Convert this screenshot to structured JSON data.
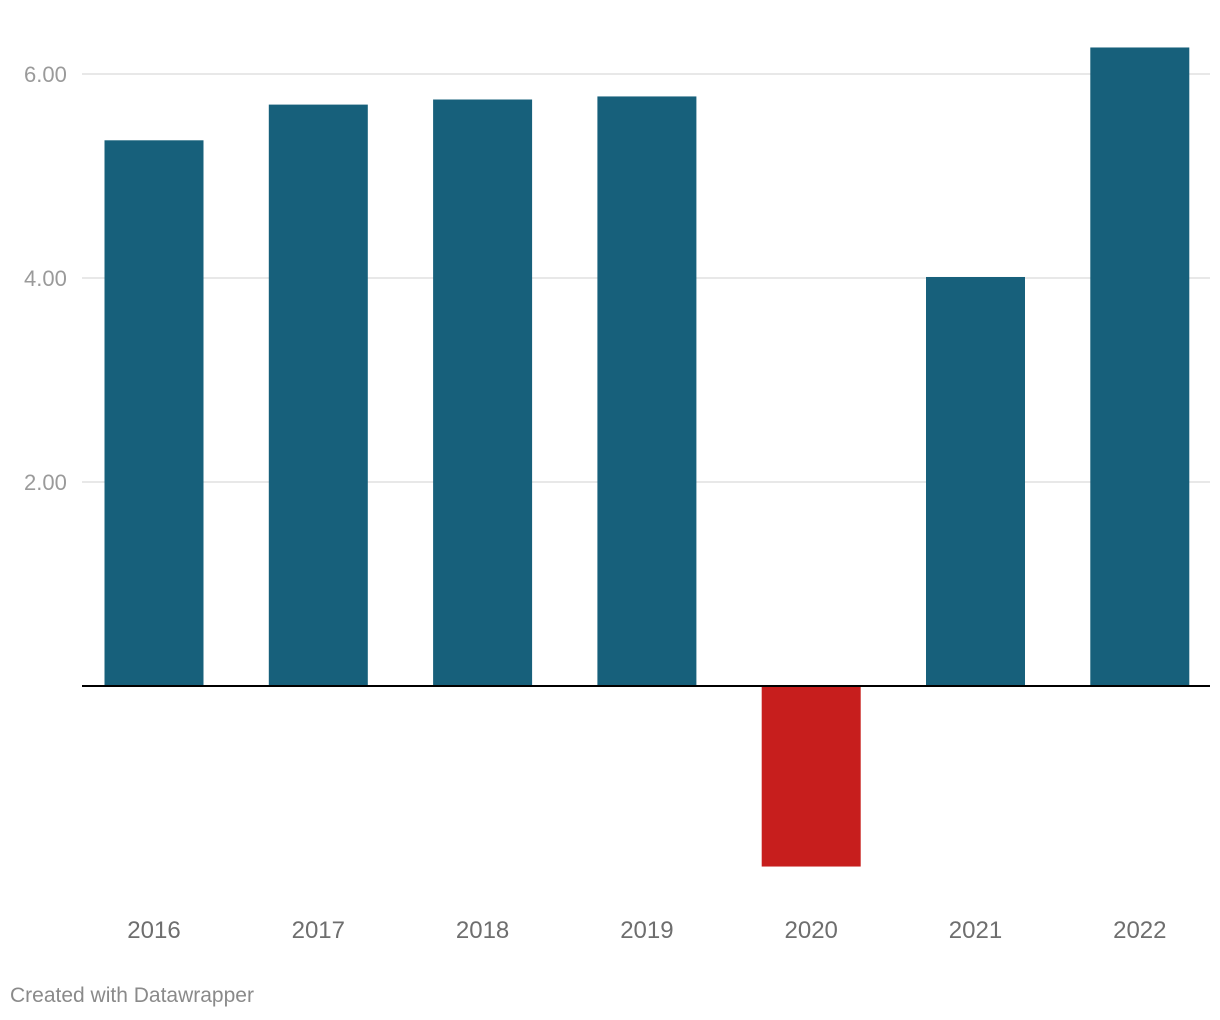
{
  "chart_data": {
    "type": "bar",
    "categories": [
      "2016",
      "2017",
      "2018",
      "2019",
      "2020",
      "2021",
      "2022"
    ],
    "values": [
      5.35,
      5.7,
      5.75,
      5.78,
      -1.77,
      4.01,
      6.26
    ],
    "yticks": [
      2,
      4,
      6
    ],
    "ytick_labels": [
      "2.00",
      "4.00",
      "6.00"
    ],
    "ylim": [
      -2,
      6.5
    ],
    "grid": true,
    "colors": {
      "positive": "#17607b",
      "negative": "#c71e1d",
      "grid": "#e0e0e0",
      "baseline": "#000000"
    }
  },
  "footer": {
    "credit": "Created with Datawrapper"
  }
}
